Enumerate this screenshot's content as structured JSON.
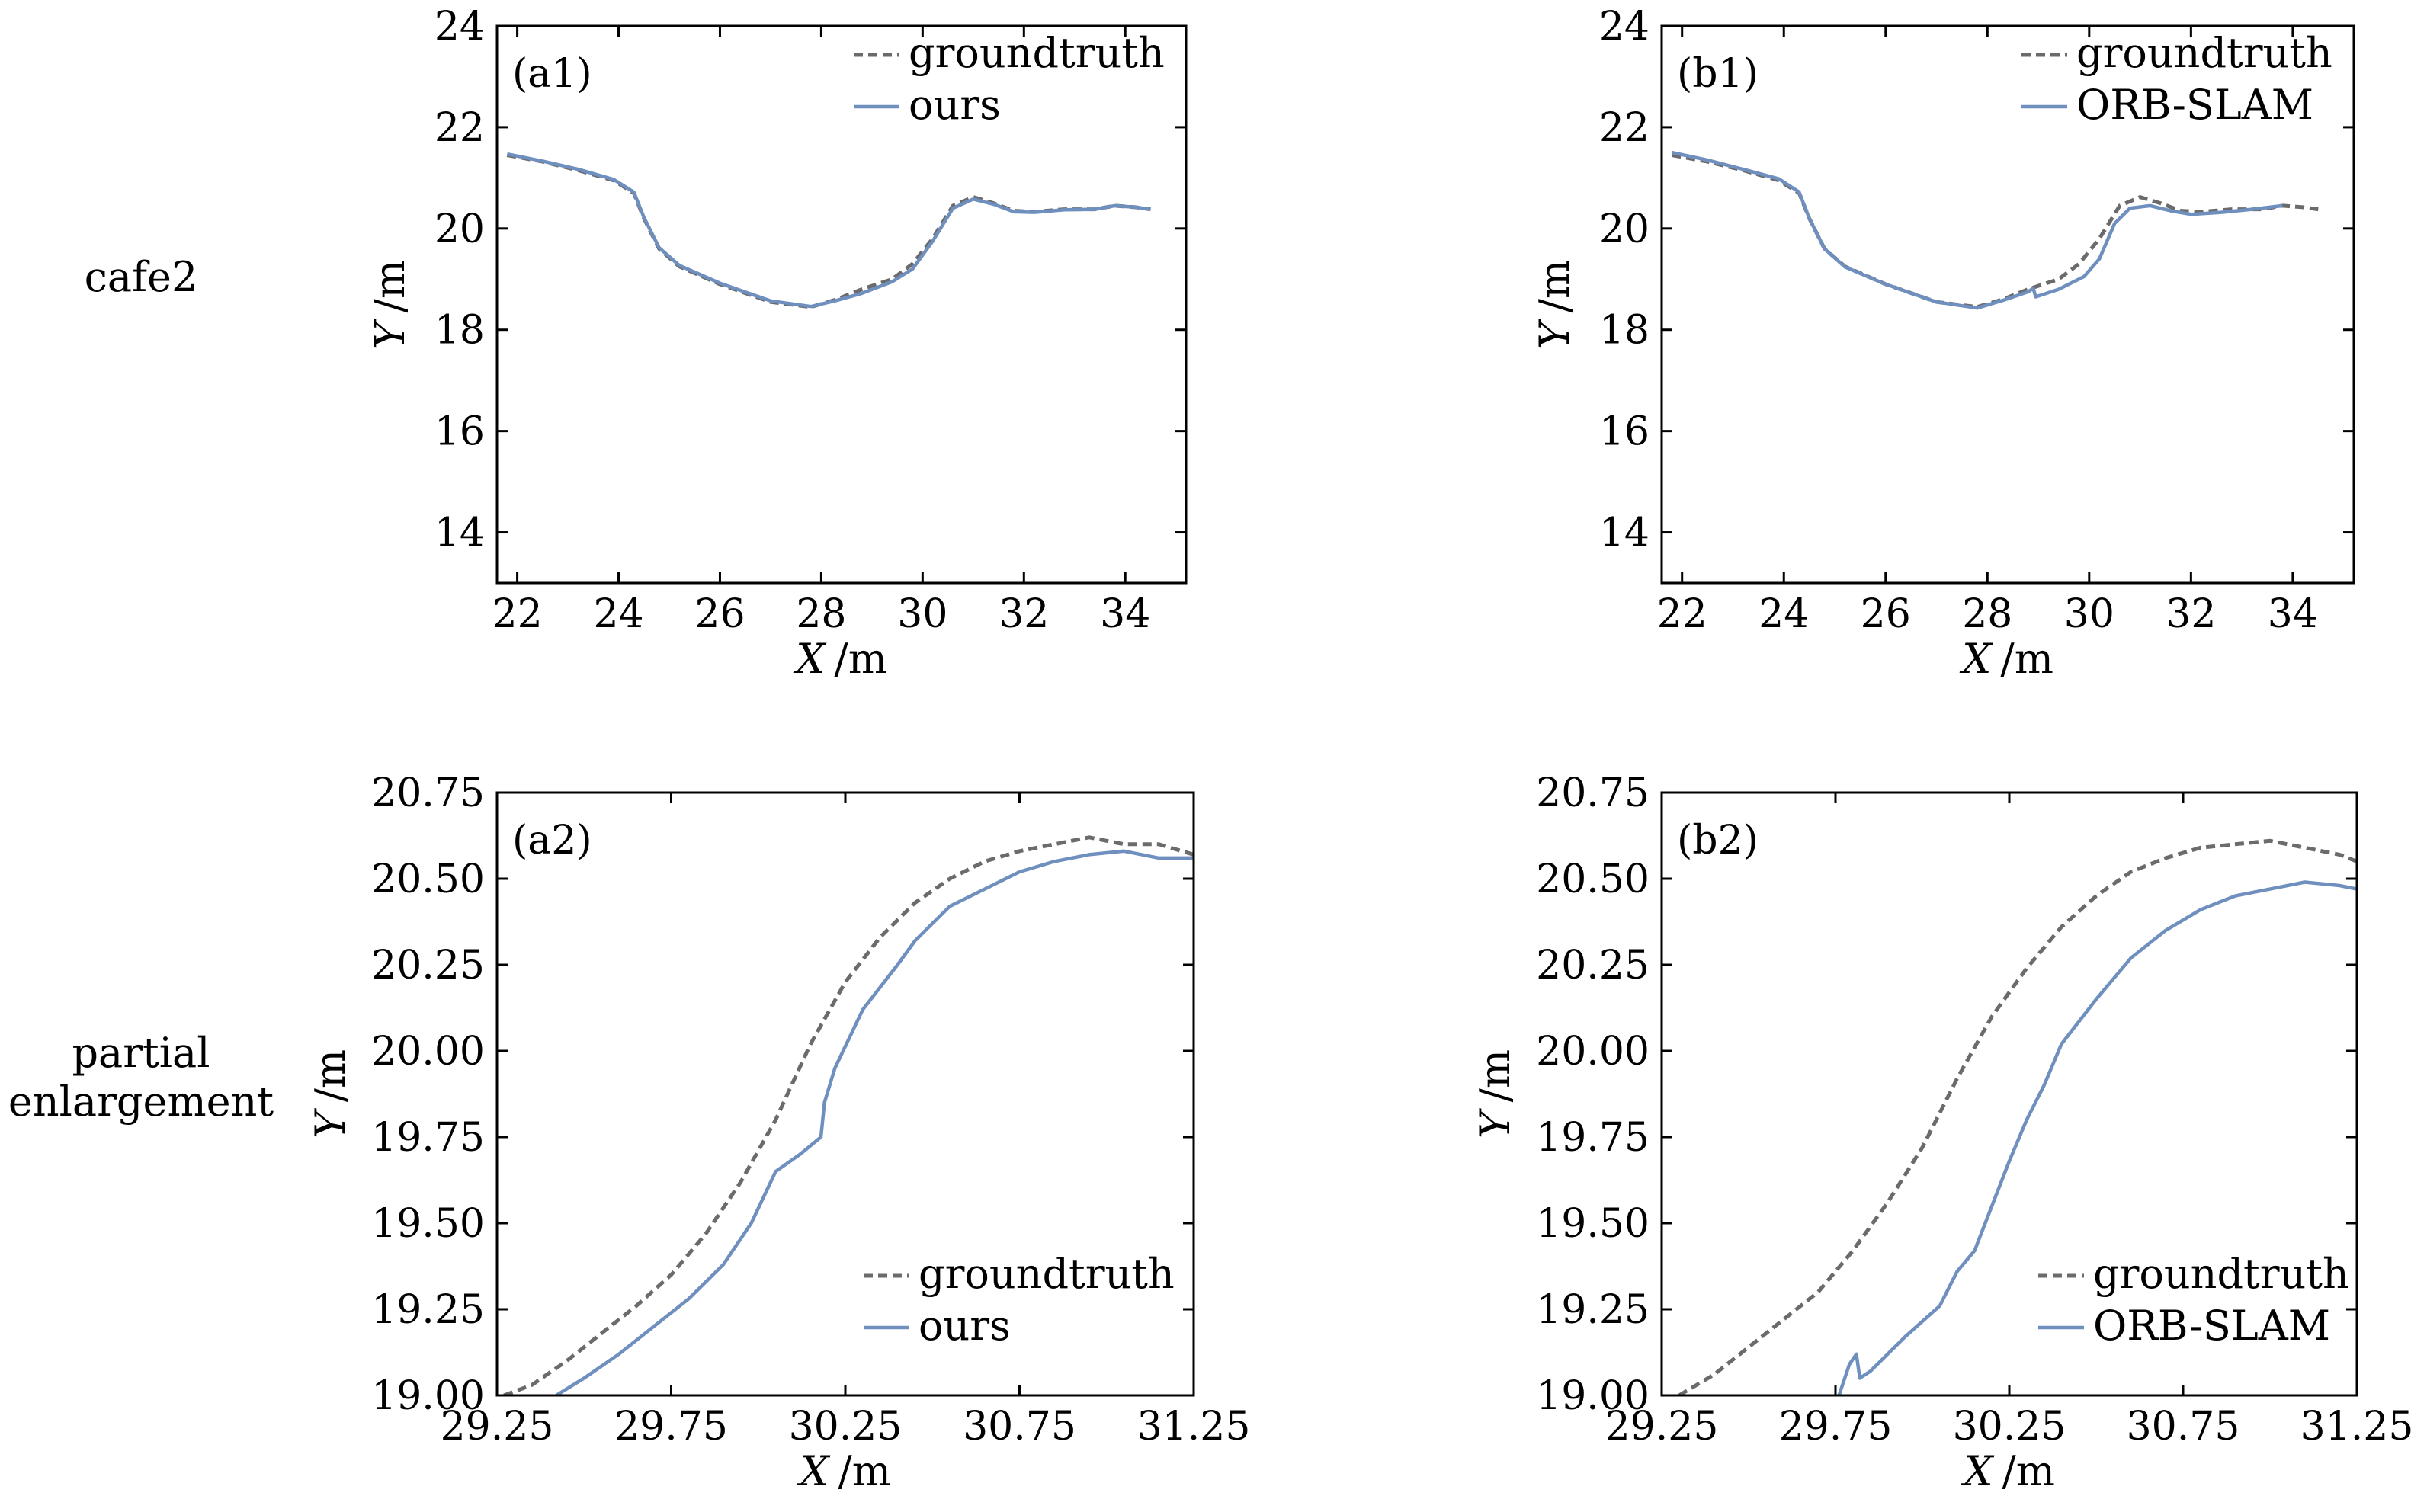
{
  "row_labels": [
    "cafe2",
    "partial\nenlargement"
  ],
  "colors": {
    "groundtruth": "#6b6b6b",
    "estimate": "#6f8fbf",
    "axis": "#000000"
  },
  "chart_data": [
    {
      "type": "line",
      "panel_label": "(a1)",
      "xlabel_var": "X",
      "xlabel_unit": "/m",
      "ylabel_var": "Y",
      "ylabel_unit": "/m",
      "xlim": [
        21.6,
        35.2
      ],
      "ylim": [
        13.0,
        24.0
      ],
      "xticks": [
        22,
        24,
        26,
        28,
        30,
        32,
        34
      ],
      "xticklabels": [
        "22",
        "24",
        "26",
        "28",
        "30",
        "32",
        "34"
      ],
      "yticks": [
        14,
        16,
        18,
        20,
        22,
        24
      ],
      "yticklabels": [
        "14",
        "16",
        "18",
        "20",
        "22",
        "24"
      ],
      "grid": false,
      "legend_position": "top-right",
      "series": [
        {
          "name": "groundtruth",
          "style": "dashed",
          "x": [
            21.8,
            22.5,
            23.2,
            23.9,
            24.3,
            24.5,
            24.8,
            25.2,
            26,
            27,
            27.8,
            28.3,
            28.8,
            29.4,
            29.8,
            30.2,
            30.6,
            31,
            31.4,
            31.8,
            32.2,
            32.8,
            33.4,
            33.8,
            34.2,
            34.5
          ],
          "y": [
            21.45,
            21.32,
            21.15,
            20.95,
            20.7,
            20.2,
            19.6,
            19.25,
            18.9,
            18.55,
            18.45,
            18.6,
            18.8,
            19.0,
            19.3,
            19.8,
            20.45,
            20.62,
            20.5,
            20.35,
            20.33,
            20.38,
            20.38,
            20.45,
            20.42,
            20.38
          ]
        },
        {
          "name": "ours",
          "style": "solid",
          "x": [
            21.8,
            22.5,
            23.2,
            23.9,
            24.3,
            24.5,
            24.8,
            25.2,
            26,
            27,
            27.8,
            28.3,
            28.8,
            29.4,
            29.8,
            30.2,
            30.6,
            31,
            31.4,
            31.8,
            32.2,
            32.8,
            33.4,
            33.8,
            34.2,
            34.5
          ],
          "y": [
            21.47,
            21.33,
            21.17,
            20.97,
            20.72,
            20.22,
            19.62,
            19.27,
            18.92,
            18.57,
            18.46,
            18.58,
            18.72,
            18.95,
            19.2,
            19.75,
            20.4,
            20.58,
            20.48,
            20.33,
            20.32,
            20.37,
            20.38,
            20.45,
            20.42,
            20.38
          ]
        }
      ]
    },
    {
      "type": "line",
      "panel_label": "(b1)",
      "xlabel_var": "X",
      "xlabel_unit": "/m",
      "ylabel_var": "Y",
      "ylabel_unit": "/m",
      "xlim": [
        21.6,
        35.2
      ],
      "ylim": [
        13.0,
        24.0
      ],
      "xticks": [
        22,
        24,
        26,
        28,
        30,
        32,
        34
      ],
      "xticklabels": [
        "22",
        "24",
        "26",
        "28",
        "30",
        "32",
        "34"
      ],
      "yticks": [
        14,
        16,
        18,
        20,
        22,
        24
      ],
      "yticklabels": [
        "14",
        "16",
        "18",
        "20",
        "22",
        "24"
      ],
      "grid": false,
      "legend_position": "top-right",
      "series": [
        {
          "name": "groundtruth",
          "style": "dashed",
          "x": [
            21.8,
            22.5,
            23.2,
            23.9,
            24.3,
            24.5,
            24.8,
            25.2,
            26,
            27,
            27.8,
            28.3,
            28.8,
            29.4,
            29.8,
            30.2,
            30.6,
            31,
            31.4,
            31.8,
            32.2,
            32.8,
            33.4,
            33.8,
            34.2,
            34.5
          ],
          "y": [
            21.45,
            21.32,
            21.15,
            20.95,
            20.7,
            20.2,
            19.6,
            19.25,
            18.9,
            18.55,
            18.45,
            18.6,
            18.8,
            19.0,
            19.3,
            19.8,
            20.45,
            20.62,
            20.5,
            20.35,
            20.33,
            20.38,
            20.38,
            20.45,
            20.42,
            20.38
          ]
        },
        {
          "name": "ORB-SLAM",
          "style": "solid",
          "x": [
            21.8,
            22.5,
            23.2,
            23.9,
            24.3,
            24.5,
            24.8,
            25.2,
            26,
            27,
            27.8,
            28.3,
            28.8,
            28.9,
            28.95,
            29.4,
            29.9,
            30.2,
            30.5,
            30.8,
            31.2,
            31.6,
            32,
            32.6,
            33.2,
            33.8
          ],
          "y": [
            21.5,
            21.35,
            21.17,
            20.98,
            20.72,
            20.2,
            19.6,
            19.24,
            18.9,
            18.55,
            18.43,
            18.58,
            18.75,
            18.82,
            18.65,
            18.8,
            19.05,
            19.4,
            20.1,
            20.4,
            20.45,
            20.35,
            20.28,
            20.32,
            20.38,
            20.45
          ]
        }
      ]
    },
    {
      "type": "line",
      "panel_label": "(a2)",
      "xlabel_var": "X",
      "xlabel_unit": "/m",
      "ylabel_var": "Y",
      "ylabel_unit": "/m",
      "xlim": [
        29.25,
        31.25
      ],
      "ylim": [
        19.0,
        20.75
      ],
      "xticks": [
        29.25,
        29.75,
        30.25,
        30.75,
        31.25
      ],
      "xticklabels": [
        "29.25",
        "29.75",
        "30.25",
        "30.75",
        "31.25"
      ],
      "yticks": [
        19.0,
        19.25,
        19.5,
        19.75,
        20.0,
        20.25,
        20.5,
        20.75
      ],
      "yticklabels": [
        "19.00",
        "19.25",
        "19.50",
        "19.75",
        "20.00",
        "20.25",
        "20.50",
        "20.75"
      ],
      "grid": false,
      "legend_position": "bottom-right",
      "series": [
        {
          "name": "groundtruth",
          "style": "dashed",
          "x": [
            29.27,
            29.35,
            29.45,
            29.55,
            29.65,
            29.75,
            29.85,
            29.95,
            30.05,
            30.15,
            30.25,
            30.35,
            30.45,
            30.55,
            30.65,
            30.75,
            30.85,
            30.95,
            31.05,
            31.15,
            31.25
          ],
          "y": [
            19.0,
            19.03,
            19.1,
            19.18,
            19.26,
            19.35,
            19.47,
            19.62,
            19.8,
            20.02,
            20.2,
            20.33,
            20.43,
            20.5,
            20.55,
            20.58,
            20.6,
            20.62,
            20.6,
            20.6,
            20.57
          ]
        },
        {
          "name": "ours",
          "style": "solid",
          "x": [
            29.42,
            29.5,
            29.6,
            29.7,
            29.8,
            29.9,
            29.98,
            30.05,
            30.12,
            30.18,
            30.19,
            30.22,
            30.3,
            30.4,
            30.45,
            30.55,
            30.65,
            30.75,
            30.85,
            30.95,
            31.05,
            31.15,
            31.25
          ],
          "y": [
            19.0,
            19.05,
            19.12,
            19.2,
            19.28,
            19.38,
            19.5,
            19.65,
            19.7,
            19.75,
            19.85,
            19.95,
            20.12,
            20.25,
            20.32,
            20.42,
            20.47,
            20.52,
            20.55,
            20.57,
            20.58,
            20.56,
            20.56
          ]
        }
      ]
    },
    {
      "type": "line",
      "panel_label": "(b2)",
      "xlabel_var": "X",
      "xlabel_unit": "/m",
      "ylabel_var": "Y",
      "ylabel_unit": "/m",
      "xlim": [
        29.25,
        31.25
      ],
      "ylim": [
        19.0,
        20.75
      ],
      "xticks": [
        29.25,
        29.75,
        30.25,
        30.75,
        31.25
      ],
      "xticklabels": [
        "29.25",
        "29.75",
        "30.25",
        "30.75",
        "31.25"
      ],
      "yticks": [
        19.0,
        19.25,
        19.5,
        19.75,
        20.0,
        20.25,
        20.5,
        20.75
      ],
      "yticklabels": [
        "19.00",
        "19.25",
        "19.50",
        "19.75",
        "20.00",
        "20.25",
        "20.50",
        "20.75"
      ],
      "grid": false,
      "legend_position": "bottom-right",
      "series": [
        {
          "name": "groundtruth",
          "style": "dashed",
          "x": [
            29.3,
            29.4,
            29.5,
            29.6,
            29.7,
            29.8,
            29.9,
            30.0,
            30.1,
            30.2,
            30.3,
            30.4,
            30.5,
            30.6,
            30.7,
            30.8,
            30.9,
            31.0,
            31.1,
            31.2,
            31.25
          ],
          "y": [
            19.0,
            19.06,
            19.14,
            19.22,
            19.3,
            19.42,
            19.56,
            19.72,
            19.92,
            20.1,
            20.24,
            20.36,
            20.45,
            20.52,
            20.56,
            20.59,
            20.6,
            20.61,
            20.59,
            20.57,
            20.55
          ]
        },
        {
          "name": "ORB-SLAM",
          "style": "solid",
          "x": [
            29.76,
            29.79,
            29.81,
            29.82,
            29.85,
            29.95,
            30.05,
            30.1,
            30.15,
            30.2,
            30.25,
            30.3,
            30.35,
            30.4,
            30.5,
            30.6,
            30.7,
            30.8,
            30.9,
            31.0,
            31.1,
            31.2,
            31.25
          ],
          "y": [
            19.0,
            19.09,
            19.12,
            19.05,
            19.07,
            19.17,
            19.26,
            19.36,
            19.42,
            19.55,
            19.68,
            19.8,
            19.9,
            20.02,
            20.15,
            20.27,
            20.35,
            20.41,
            20.45,
            20.47,
            20.49,
            20.48,
            20.47
          ]
        }
      ]
    }
  ]
}
